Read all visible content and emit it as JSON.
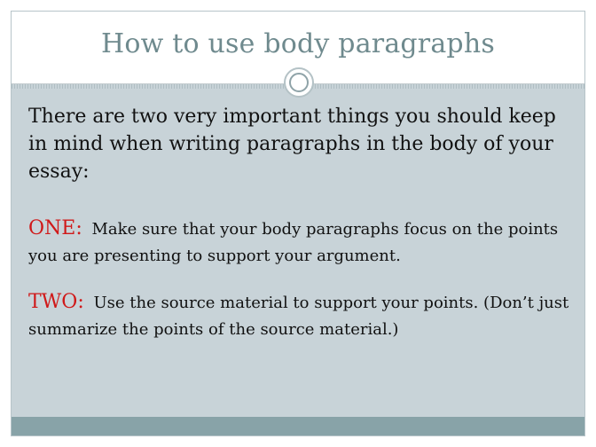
{
  "slide": {
    "title": "How to use body paragraphs",
    "intro": "There are two very important things you should keep in mind when writing paragraphs in the body of your essay:",
    "points": [
      {
        "label": "ONE:",
        "text": "Make sure that your body paragraphs focus on the points you are presenting to support your argument."
      },
      {
        "label": "TWO:",
        "text": "Use the source material to support your points. (Don’t just summarize the points of the source material.)"
      }
    ]
  },
  "colors": {
    "title": "#6f8a8e",
    "background": "#c8d3d8",
    "accent_label": "#d01919",
    "footer_bar": "#88a3a8"
  }
}
